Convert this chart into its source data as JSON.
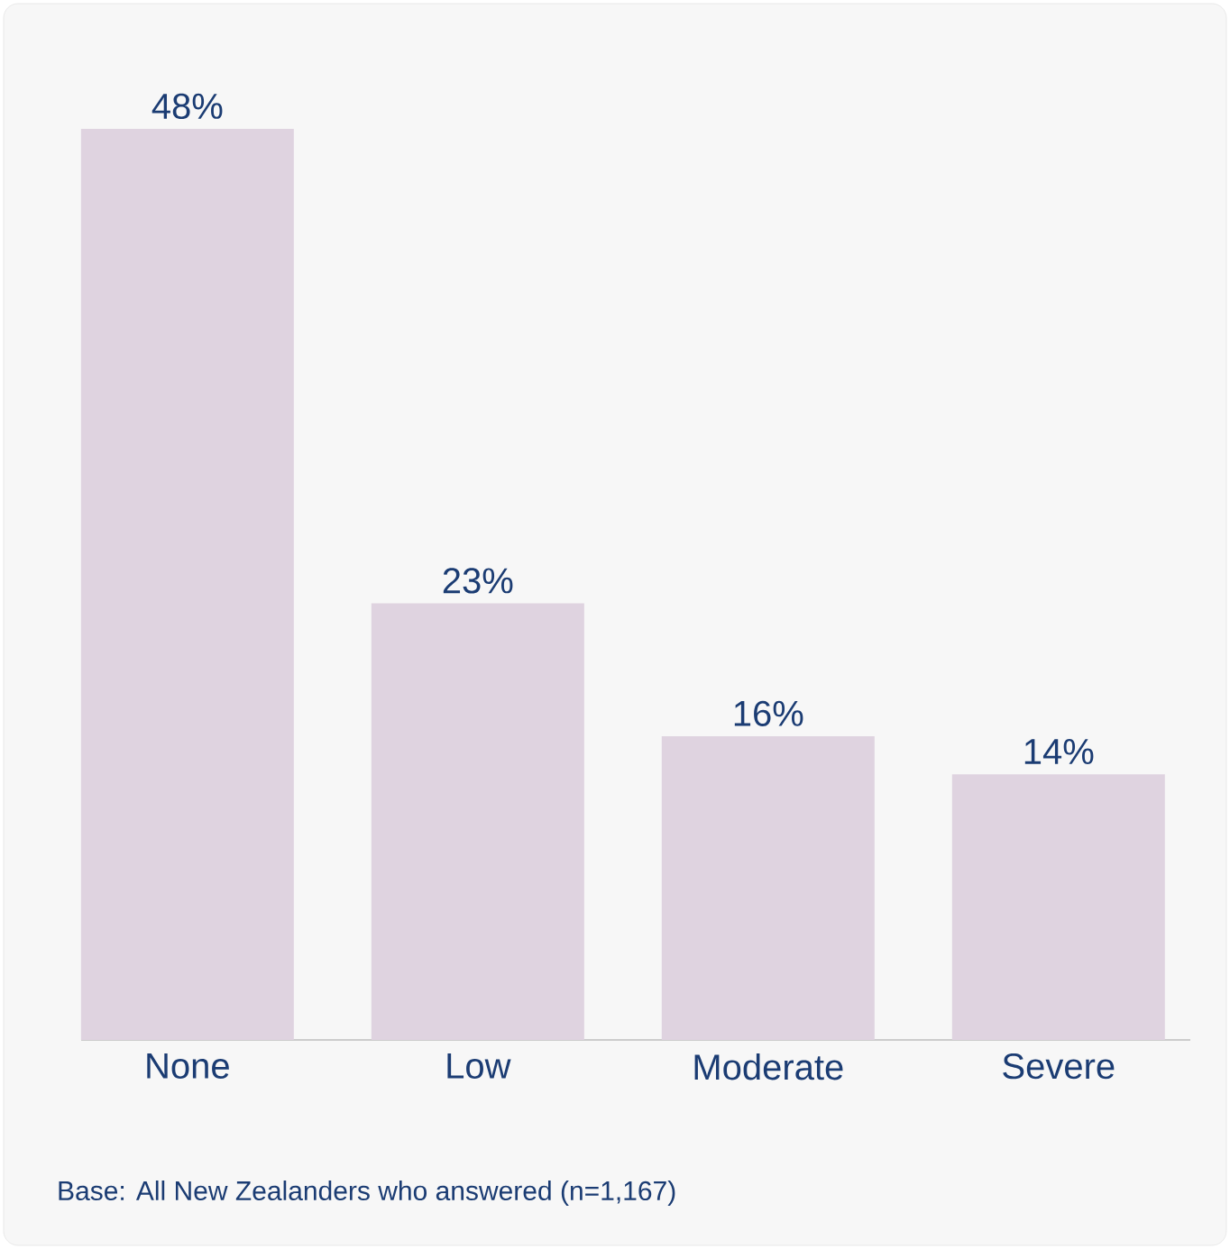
{
  "chart_data": {
    "type": "bar",
    "categories": [
      "None",
      "Low",
      "Moderate",
      "Severe"
    ],
    "values": [
      48,
      23,
      16,
      14
    ],
    "value_labels": [
      "48%",
      "23%",
      "16%",
      "14%"
    ],
    "color": "#dfd3e0",
    "grid": false,
    "annotations": [
      "Base: All New Zealanders who answered (n=1,167)"
    ]
  }
}
